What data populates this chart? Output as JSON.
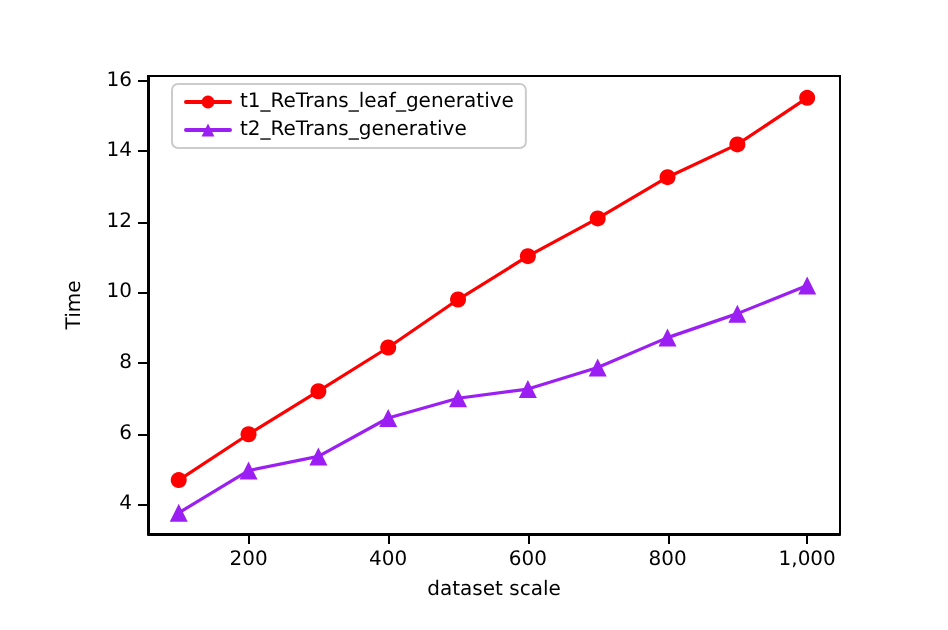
{
  "chart_data": {
    "type": "line",
    "xlabel": "dataset scale",
    "ylabel": "Time",
    "x": [
      100,
      200,
      300,
      400,
      500,
      600,
      700,
      800,
      900,
      1000
    ],
    "series": [
      {
        "name": "t1_ReTrans_leaf_generative",
        "color": "#ff0000",
        "marker": "circle",
        "values": [
          4.68,
          5.98,
          7.2,
          8.44,
          9.8,
          11.03,
          12.1,
          13.27,
          14.2,
          15.52
        ]
      },
      {
        "name": "t2_ReTrans_generative",
        "color": "#9b1ff2",
        "marker": "triangle",
        "values": [
          3.75,
          4.95,
          5.35,
          6.44,
          7.0,
          7.26,
          7.87,
          8.72,
          9.4,
          10.2
        ]
      }
    ],
    "xlim": [
      56,
      1047
    ],
    "ylim": [
      3.15,
      16.14
    ],
    "xticks": [
      200,
      400,
      600,
      800,
      {
        "value": 1000,
        "label": "1,000"
      }
    ],
    "yticks": [
      4,
      6,
      8,
      10,
      12,
      14,
      16
    ],
    "grid": false,
    "legend": "top left",
    "line_style": "solid"
  }
}
